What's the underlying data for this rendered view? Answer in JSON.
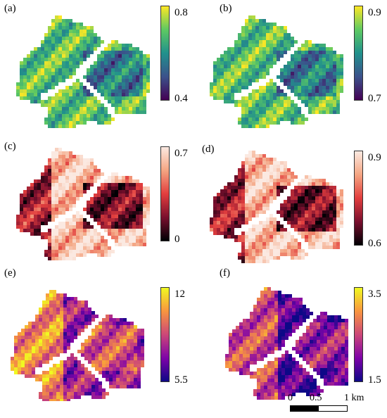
{
  "panels": [
    {
      "id": "a",
      "label": "(a)",
      "cmap": "viridis",
      "ticks": [
        "0.8",
        "0.4"
      ]
    },
    {
      "id": "b",
      "label": "(b)",
      "cmap": "viridis",
      "ticks": [
        "0.9",
        "0.7"
      ]
    },
    {
      "id": "c",
      "label": "(c)",
      "cmap": "rdpu_dark",
      "ticks": [
        "0.7",
        "0"
      ]
    },
    {
      "id": "d",
      "label": "(d)",
      "cmap": "rdpu_dark",
      "ticks": [
        "0.9",
        "0.6"
      ]
    },
    {
      "id": "e",
      "label": "(e)",
      "cmap": "plasma",
      "ticks": [
        "12",
        "5.5"
      ]
    },
    {
      "id": "f",
      "label": "(f)",
      "cmap": "plasma",
      "ticks": [
        "3.5",
        "1.5"
      ]
    }
  ],
  "scalebar": {
    "labels": [
      "0",
      "0.5",
      "1 km"
    ]
  },
  "colors": {
    "viridis": [
      "#440154",
      "#3b528b",
      "#21918c",
      "#5ec962",
      "#fde725"
    ],
    "rdpu_dark": [
      "#000004",
      "#7a0f2e",
      "#e23e3e",
      "#f4a582",
      "#fbe9e1"
    ],
    "plasma": [
      "#0d0887",
      "#7e03a8",
      "#cc4778",
      "#f89540",
      "#f0f921"
    ]
  }
}
